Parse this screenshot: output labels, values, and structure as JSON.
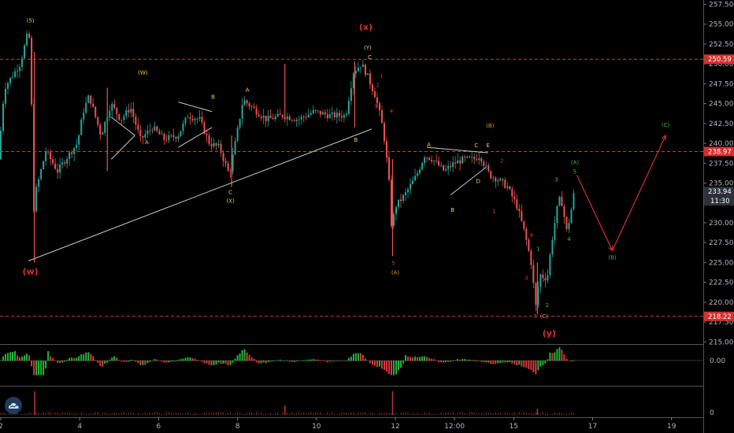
{
  "chart_data": {
    "type": "candlestick",
    "title": "",
    "xlabel": "",
    "ylabel": "",
    "ylim": [
      214.5,
      258
    ],
    "y_ticks": [
      215.0,
      217.5,
      220.0,
      222.5,
      225.0,
      227.5,
      230.0,
      232.5,
      235.0,
      237.5,
      240.0,
      242.5,
      245.0,
      247.5,
      250.0,
      252.5,
      255.0,
      257.5
    ],
    "x_ticks": [
      {
        "label": "2",
        "x": 0
      },
      {
        "label": "4",
        "x": 2
      },
      {
        "label": "6",
        "x": 4
      },
      {
        "label": "8",
        "x": 6
      },
      {
        "label": "10",
        "x": 8
      },
      {
        "label": "12",
        "x": 10
      },
      {
        "label": "12:00",
        "x": 11.5
      },
      {
        "label": "15",
        "x": 13
      },
      {
        "label": "17",
        "x": 15
      },
      {
        "label": "19",
        "x": 17
      }
    ],
    "price_path": [
      [
        0.0,
        238.0
      ],
      [
        0.15,
        247.0
      ],
      [
        0.55,
        250.0
      ],
      [
        0.75,
        254.0
      ],
      [
        0.83,
        252.0
      ],
      [
        0.86,
        230.0
      ],
      [
        0.95,
        234.0
      ],
      [
        1.2,
        239.0
      ],
      [
        1.5,
        236.5
      ],
      [
        1.7,
        238.0
      ],
      [
        2.0,
        240.0
      ],
      [
        2.15,
        244.0
      ],
      [
        2.3,
        246.0
      ],
      [
        2.6,
        241.0
      ],
      [
        2.85,
        245.0
      ],
      [
        3.1,
        243.0
      ],
      [
        3.35,
        244.5
      ],
      [
        3.6,
        240.5
      ],
      [
        3.9,
        242.0
      ],
      [
        4.2,
        240.5
      ],
      [
        4.55,
        241.0
      ],
      [
        4.8,
        243.5
      ],
      [
        5.1,
        243.0
      ],
      [
        5.35,
        240.0
      ],
      [
        5.6,
        239.5
      ],
      [
        5.85,
        236.0
      ],
      [
        6.0,
        240.0
      ],
      [
        6.2,
        245.5
      ],
      [
        6.55,
        244.0
      ],
      [
        6.8,
        243.0
      ],
      [
        7.2,
        243.5
      ],
      [
        7.6,
        243.0
      ],
      [
        8.0,
        244.0
      ],
      [
        8.4,
        243.5
      ],
      [
        8.8,
        243.5
      ],
      [
        9.0,
        249.0
      ],
      [
        9.2,
        250.0
      ],
      [
        9.35,
        248.5
      ],
      [
        9.55,
        246.0
      ],
      [
        9.7,
        243.0
      ],
      [
        9.8,
        240.0
      ],
      [
        9.9,
        235.0
      ],
      [
        9.97,
        229.0
      ],
      [
        10.05,
        232.0
      ],
      [
        10.3,
        233.5
      ],
      [
        10.6,
        236.0
      ],
      [
        10.8,
        238.5
      ],
      [
        11.0,
        238.0
      ],
      [
        11.3,
        236.5
      ],
      [
        11.55,
        237.5
      ],
      [
        11.8,
        238.0
      ],
      [
        12.05,
        238.0
      ],
      [
        12.2,
        238.5
      ],
      [
        12.45,
        236.0
      ],
      [
        12.65,
        235.5
      ],
      [
        12.9,
        234.5
      ],
      [
        13.15,
        232.0
      ],
      [
        13.35,
        228.5
      ],
      [
        13.5,
        225.0
      ],
      [
        13.62,
        219.5
      ],
      [
        13.72,
        223.5
      ],
      [
        13.85,
        223.0
      ],
      [
        13.92,
        223.5
      ],
      [
        14.02,
        227.5
      ],
      [
        14.1,
        230.0
      ],
      [
        14.2,
        233.0
      ],
      [
        14.28,
        232.5
      ],
      [
        14.4,
        229.0
      ],
      [
        14.48,
        230.5
      ],
      [
        14.58,
        233.5
      ]
    ],
    "projection": [
      [
        14.6,
        236.0
      ],
      [
        15.5,
        226.5
      ],
      [
        16.85,
        241.0
      ]
    ],
    "horizontal_levels": [
      {
        "price": 250.59,
        "label": "250.59"
      },
      {
        "price": 238.97,
        "label": "238.97"
      },
      {
        "price": 218.22,
        "label": "218.22"
      }
    ],
    "current_price": {
      "label": "233.94",
      "countdown": "11:30",
      "price": 233.94
    },
    "trendlines": [
      {
        "from": [
          0.7,
          225.2
        ],
        "to": [
          9.4,
          241.8
        ]
      },
      {
        "from": [
          2.8,
          243.3
        ],
        "to": [
          3.4,
          241.0
        ]
      },
      {
        "from": [
          2.8,
          238.0
        ],
        "to": [
          3.4,
          241.0
        ]
      },
      {
        "from": [
          4.5,
          245.2
        ],
        "to": [
          5.35,
          244.0
        ]
      },
      {
        "from": [
          4.5,
          239.5
        ],
        "to": [
          5.35,
          242.0
        ]
      },
      {
        "from": [
          10.8,
          239.5
        ],
        "to": [
          12.35,
          238.8
        ]
      },
      {
        "from": [
          11.4,
          233.5
        ],
        "to": [
          12.3,
          237.0
        ]
      }
    ],
    "wave_labels": [
      {
        "text": "(5)",
        "x": 0.75,
        "price": 255.2,
        "color": "yellow"
      },
      {
        "text": "(W)",
        "x": 3.6,
        "price": 248.7,
        "color": "yellow"
      },
      {
        "text": "A",
        "x": 3.7,
        "price": 239.9,
        "color": "yellow"
      },
      {
        "text": "B",
        "x": 5.38,
        "price": 245.6,
        "color": "yellow"
      },
      {
        "text": "A",
        "x": 6.25,
        "price": 246.5,
        "color": "yellow"
      },
      {
        "text": "C",
        "x": 5.82,
        "price": 233.6,
        "color": "yellow"
      },
      {
        "text": "(X)",
        "x": 5.82,
        "price": 232.5,
        "color": "yellow"
      },
      {
        "text": "(Y)",
        "x": 9.3,
        "price": 251.8,
        "color": "yellow"
      },
      {
        "text": "C",
        "x": 9.35,
        "price": 250.6,
        "color": "yellow"
      },
      {
        "text": "B",
        "x": 9.0,
        "price": 240.2,
        "color": "yellow"
      },
      {
        "text": "A",
        "x": 10.85,
        "price": 239.6,
        "color": "yellow"
      },
      {
        "text": "B",
        "x": 11.45,
        "price": 231.4,
        "color": "yellow"
      },
      {
        "text": "C",
        "x": 12.05,
        "price": 239.5,
        "color": "yellow"
      },
      {
        "text": "D",
        "x": 12.1,
        "price": 235.0,
        "color": "yellow"
      },
      {
        "text": "E",
        "x": 12.35,
        "price": 239.5,
        "color": "yellow"
      },
      {
        "text": "(B)",
        "x": 12.4,
        "price": 242.0,
        "color": "orange"
      },
      {
        "text": "(A)",
        "x": 10.0,
        "price": 223.5,
        "color": "orange"
      },
      {
        "text": "(C)",
        "x": 13.77,
        "price": 218.0,
        "color": "orange"
      },
      {
        "text": "1",
        "x": 9.65,
        "price": 248.3,
        "color": "red"
      },
      {
        "text": "2",
        "x": 9.55,
        "price": 247.1,
        "color": "red"
      },
      {
        "text": "3",
        "x": 9.5,
        "price": 244.4,
        "color": "red"
      },
      {
        "text": "4",
        "x": 9.9,
        "price": 243.8,
        "color": "red"
      },
      {
        "text": "5",
        "x": 9.8,
        "price": 237.9,
        "color": "red"
      },
      {
        "text": "5",
        "x": 9.95,
        "price": 224.7,
        "color": "red"
      },
      {
        "text": "2",
        "x": 12.7,
        "price": 237.6,
        "color": "red"
      },
      {
        "text": "1",
        "x": 12.5,
        "price": 231.2,
        "color": "red"
      },
      {
        "text": "4",
        "x": 13.45,
        "price": 228.2,
        "color": "red"
      },
      {
        "text": "3",
        "x": 13.32,
        "price": 222.8,
        "color": "red"
      },
      {
        "text": "5",
        "x": 13.55,
        "price": 218.0,
        "color": "red"
      },
      {
        "text": "1",
        "x": 13.62,
        "price": 226.5,
        "color": "green"
      },
      {
        "text": "2",
        "x": 13.85,
        "price": 219.4,
        "color": "green"
      },
      {
        "text": "3",
        "x": 14.08,
        "price": 235.2,
        "color": "green"
      },
      {
        "text": "4",
        "x": 14.4,
        "price": 227.7,
        "color": "green"
      },
      {
        "text": "5",
        "x": 14.55,
        "price": 236.2,
        "color": "green"
      },
      {
        "text": "(A)",
        "x": 14.55,
        "price": 237.4,
        "color": "green"
      },
      {
        "text": "(B)",
        "x": 15.5,
        "price": 225.4,
        "color": "green"
      },
      {
        "text": "(C)",
        "x": 16.85,
        "price": 242.1,
        "color": "green"
      }
    ],
    "degree_labels": [
      {
        "text": "(w)",
        "x": 0.75,
        "price": 223.5
      },
      {
        "text": "(x)",
        "x": 9.25,
        "price": 254.3
      },
      {
        "text": "(y)",
        "x": 13.9,
        "price": 215.7
      }
    ],
    "oscillator": {
      "label": "0.00",
      "zero": 0,
      "range": [
        -1,
        1
      ]
    },
    "volume": {
      "label": "0"
    }
  },
  "colors": {
    "background": "#000000",
    "up_candle": "#26a69a",
    "down_candle": "#ef5350",
    "level_line": "#d93636",
    "price_tag": "#d32f2f",
    "current_tag": "#2c3038",
    "trendline": "#c8c8c8",
    "projection": "#d62e2e",
    "axis_text": "#b2b5be"
  },
  "logo_icon": "tradingview-cloud-icon"
}
